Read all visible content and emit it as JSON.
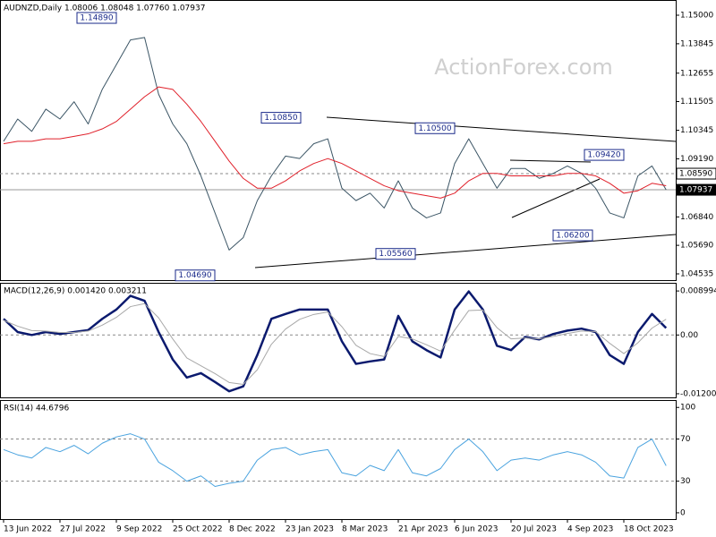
{
  "chart_data": [
    {
      "type": "line",
      "title": "AUDNZD,Daily  1.08006 1.08048 1.07760 1.07937",
      "watermark": "ActionForex.com",
      "ylim": [
        1.04282,
        1.15615
      ],
      "yticks": [
        {
          "value": 1.15,
          "label": "1.15000"
        },
        1.13845,
        1.12655,
        1.11505,
        {
          "value": 1.10345,
          "label": "1.10345"
        },
        {
          "value": 1.0919,
          "label": "1.09190"
        },
        {
          "value": 1.0684,
          "label": "1.06840"
        },
        {
          "value": 1.0569,
          "label": "1.05690"
        },
        1.04535
      ],
      "levels": [
        {
          "value": 1.0859,
          "label": "1.08590",
          "style": "dashed"
        },
        {
          "value": 1.07937,
          "label": "1.07937",
          "style": "solid"
        }
      ],
      "annotations": [
        {
          "value": 1.1489,
          "label": "1.14890"
        },
        {
          "value": 1.1085,
          "label": "1.10850"
        },
        {
          "value": 1.105,
          "label": "1.10500"
        },
        {
          "value": 1.0942,
          "label": "1.09420"
        },
        {
          "value": 1.0469,
          "label": "1.04690"
        },
        {
          "value": 1.0556,
          "label": "1.05560"
        },
        {
          "value": 1.062,
          "label": "1.06200"
        }
      ],
      "series": [
        {
          "name": "Close",
          "color": "#3b5565",
          "values": [
            1.099,
            1.108,
            1.103,
            1.112,
            1.108,
            1.115,
            1.106,
            1.12,
            1.13,
            1.14,
            1.141,
            1.118,
            1.106,
            1.098,
            1.085,
            1.07,
            1.055,
            1.06,
            1.075,
            1.085,
            1.093,
            1.092,
            1.098,
            1.1,
            1.08,
            1.075,
            1.078,
            1.072,
            1.083,
            1.072,
            1.068,
            1.07,
            1.09,
            1.1,
            1.09,
            1.08,
            1.088,
            1.088,
            1.084,
            1.086,
            1.089,
            1.086,
            1.08,
            1.07,
            1.068,
            1.085,
            1.089,
            1.07937
          ]
        },
        {
          "name": "MA",
          "color": "#e0202a",
          "values": [
            1.098,
            1.099,
            1.099,
            1.1,
            1.1,
            1.101,
            1.102,
            1.104,
            1.107,
            1.112,
            1.117,
            1.121,
            1.12,
            1.114,
            1.107,
            1.099,
            1.091,
            1.084,
            1.08,
            1.08,
            1.083,
            1.087,
            1.09,
            1.092,
            1.09,
            1.087,
            1.084,
            1.081,
            1.079,
            1.078,
            1.077,
            1.076,
            1.078,
            1.083,
            1.086,
            1.086,
            1.085,
            1.085,
            1.085,
            1.085,
            1.086,
            1.086,
            1.085,
            1.082,
            1.078,
            1.079,
            1.082,
            1.081
          ]
        }
      ]
    },
    {
      "type": "line",
      "title": "MACD(12,26,9) 0.001420 0.003211",
      "ylim": [
        -0.01275,
        0.01066
      ],
      "yticks": [
        0.008994,
        {
          "value": 0,
          "label": "0.00"
        },
        -0.012008
      ],
      "levels": [
        {
          "value": 0,
          "style": "dashed"
        }
      ],
      "series": [
        {
          "name": "MACD",
          "color": "#0b1a6e",
          "width": 2.5,
          "values": [
            0.0033,
            0.0006,
            0,
            0.0006,
            0.0002,
            0.0006,
            0.001,
            0.0033,
            0.0052,
            0.008,
            0.007,
            0.0006,
            -0.005,
            -0.0087,
            -0.0078,
            -0.0096,
            -0.0115,
            -0.0105,
            -0.0041,
            0.0033,
            0.0043,
            0.0052,
            0.0052,
            0.0052,
            -0.0013,
            -0.0059,
            -0.0054,
            -0.005,
            0.0039,
            -0.0013,
            -0.0031,
            -0.0046,
            0.0052,
            0.0089,
            0.0052,
            -0.0022,
            -0.0031,
            -0.0004,
            -0.0009,
            0.0002,
            0.0009,
            0.0013,
            0.0006,
            -0.0041,
            -0.0059,
            0.0006,
            0.0043,
            0.00142
          ]
        },
        {
          "name": "Signal",
          "color": "#a8a8a8",
          "width": 1,
          "values": [
            0.003,
            0.0018,
            0.0009,
            0.0008,
            0.0005,
            0.0005,
            0.0008,
            0.002,
            0.0036,
            0.0058,
            0.0064,
            0.0035,
            -0.0008,
            -0.0047,
            -0.0063,
            -0.0079,
            -0.0097,
            -0.0101,
            -0.0071,
            -0.0019,
            0.0012,
            0.0032,
            0.0042,
            0.0047,
            0.0017,
            -0.0021,
            -0.0038,
            -0.0044,
            -0.0003,
            -0.0008,
            -0.002,
            -0.0033,
            0.001,
            0.005,
            0.0051,
            0.0015,
            -0.0008,
            -0.0006,
            -0.0008,
            -0.0003,
            0.0003,
            0.0008,
            0.0007,
            -0.0017,
            -0.0038,
            -0.0016,
            0.0014,
            0.003211
          ]
        }
      ]
    },
    {
      "type": "line",
      "title": "RSI(14) 44.6796",
      "ylim": [
        -6,
        107
      ],
      "yticks": [
        100,
        70,
        30,
        0
      ],
      "levels": [
        {
          "value": 70,
          "style": "dashed"
        },
        {
          "value": 30,
          "style": "dashed"
        }
      ],
      "categories": [
        "13 Jun 2022",
        null,
        null,
        null,
        "27 Jul 2022",
        null,
        null,
        null,
        "9 Sep 2022",
        null,
        null,
        null,
        "25 Oct 2022",
        null,
        null,
        null,
        "8 Dec 2022",
        null,
        null,
        null,
        "23 Jan 2023",
        null,
        null,
        null,
        "8 Mar 2023",
        null,
        null,
        null,
        "21 Apr 2023",
        null,
        null,
        null,
        "6 Jun 2023",
        null,
        null,
        null,
        "20 Jul 2023",
        null,
        null,
        null,
        "4 Sep 2023",
        null,
        null,
        null,
        "18 Oct 2023",
        null,
        null,
        null
      ],
      "series": [
        {
          "name": "RSI",
          "color": "#4aa3df",
          "width": 1,
          "values": [
            60,
            55,
            52,
            62,
            58,
            64,
            56,
            66,
            72,
            75,
            70,
            48,
            40,
            30,
            35,
            25,
            28,
            30,
            50,
            60,
            62,
            55,
            58,
            60,
            38,
            35,
            45,
            40,
            60,
            38,
            35,
            42,
            60,
            70,
            58,
            40,
            50,
            52,
            50,
            55,
            58,
            55,
            48,
            35,
            33,
            62,
            70,
            44.6796
          ]
        }
      ]
    }
  ]
}
